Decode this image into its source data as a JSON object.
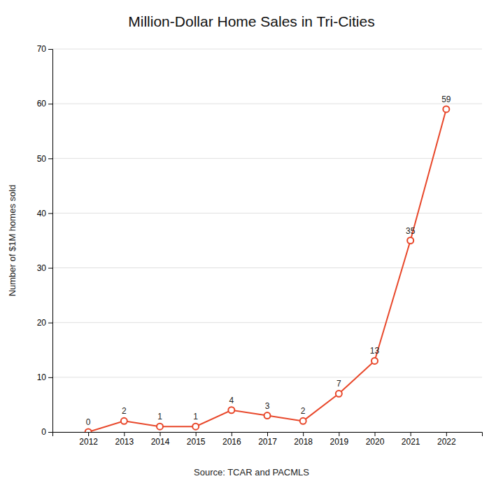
{
  "chart_data": {
    "type": "line",
    "title": "Million-Dollar Home Sales in Tri-Cities",
    "ylabel": "Number of $1M homes sold",
    "annotations": [
      "Source: TCAR and PACMLS"
    ],
    "x": [
      2012,
      2013,
      2014,
      2015,
      2016,
      2017,
      2018,
      2019,
      2020,
      2021,
      2022
    ],
    "values": [
      0,
      2,
      1,
      1,
      4,
      3,
      2,
      7,
      13,
      35,
      59
    ],
    "color": "#E8472A",
    "marker": "circle",
    "xlim": [
      2011,
      2023
    ],
    "xticks": [
      2012,
      2013,
      2014,
      2015,
      2016,
      2017,
      2018,
      2019,
      2020,
      2021,
      2022
    ],
    "ylim": [
      0,
      70
    ],
    "yticks": [
      0,
      10,
      20,
      30,
      40,
      50,
      60,
      70
    ],
    "grid": true,
    "data_labels": true
  }
}
